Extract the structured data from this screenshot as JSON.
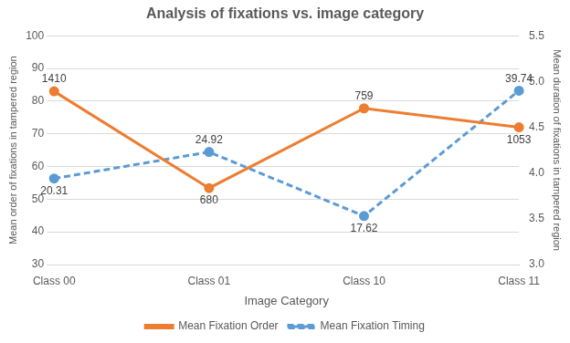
{
  "chart_data": {
    "type": "line",
    "title": "Analysis of fixations vs. image category",
    "x_label": "Image Category",
    "y_label": "Mean order of fixations in tampered region",
    "y2_label": "Mean duration of fixations in tampered region",
    "categories": [
      "Class 00",
      "Class 01",
      "Class 10",
      "Class 11"
    ],
    "series": [
      {
        "name": "Mean Fixation Order",
        "color": "#ed7d31",
        "values": [
          83,
          53.4,
          77.8,
          72
        ],
        "annotations": [
          "1410",
          "680",
          "759",
          "1053"
        ],
        "marker": "circle",
        "line_style": "solid"
      },
      {
        "name": "Mean Fixation Timing",
        "color": "#5b9bd5",
        "values": [
          3.94,
          4.23,
          3.53,
          4.9
        ],
        "annotations": [
          "20.31",
          "24.92",
          "17.62",
          "39.74"
        ],
        "marker": "circle",
        "line_style": "dashed",
        "axis": "y2"
      }
    ],
    "ylim": [
      30,
      100
    ],
    "yticks": [
      30,
      40,
      50,
      60,
      70,
      80,
      90,
      100
    ],
    "y2lim": [
      3,
      5.5
    ],
    "y2ticks": [
      3,
      3.5,
      4,
      4.5,
      5,
      5.5
    ],
    "grid": true,
    "legend": "bottom"
  }
}
